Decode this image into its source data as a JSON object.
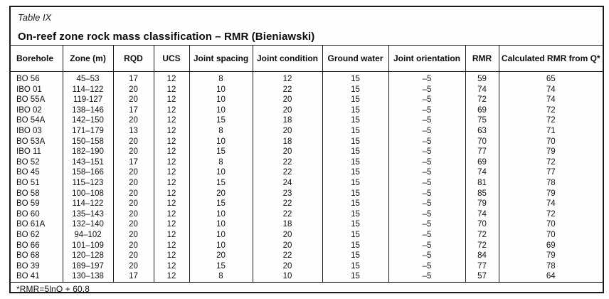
{
  "table": {
    "caption": "Table IX",
    "title": "On-reef zone rock mass classification – RMR (Bieniawski)",
    "columns": [
      "Borehole",
      "Zone (m)",
      "RQD",
      "UCS",
      "Joint spacing",
      "Joint condition",
      "Ground water",
      "Joint orientation",
      "RMR",
      "Calculated RMR from Q*"
    ],
    "rows": [
      [
        "BO 56",
        "45–53",
        "17",
        "12",
        "8",
        "12",
        "15",
        "–5",
        "59",
        "65"
      ],
      [
        "IBO 01",
        "114–122",
        "20",
        "12",
        "10",
        "22",
        "15",
        "–5",
        "74",
        "74"
      ],
      [
        "BO 55A",
        "119-127",
        "20",
        "12",
        "10",
        "20",
        "15",
        "–5",
        "72",
        "74"
      ],
      [
        "IBO 02",
        "138–146",
        "17",
        "12",
        "10",
        "20",
        "15",
        "–5",
        "69",
        "72"
      ],
      [
        "BO 54A",
        "142–150",
        "20",
        "12",
        "15",
        "18",
        "15",
        "–5",
        "75",
        "72"
      ],
      [
        "IBO 03",
        "171–179",
        "13",
        "12",
        "8",
        "20",
        "15",
        "–5",
        "63",
        "71"
      ],
      [
        "BO 53A",
        "150–158",
        "20",
        "12",
        "10",
        "18",
        "15",
        "–5",
        "70",
        "70"
      ],
      [
        "IBO 11",
        "182–190",
        "20",
        "12",
        "15",
        "20",
        "15",
        "–5",
        "77",
        "79"
      ],
      [
        "BO 52",
        "143–151",
        "17",
        "12",
        "8",
        "22",
        "15",
        "–5",
        "69",
        "72"
      ],
      [
        "BO 45",
        "158–166",
        "20",
        "12",
        "10",
        "22",
        "15",
        "–5",
        "74",
        "77"
      ],
      [
        "BO 51",
        "115–123",
        "20",
        "12",
        "15",
        "24",
        "15",
        "–5",
        "81",
        "78"
      ],
      [
        "BO 58",
        "100–108",
        "20",
        "12",
        "20",
        "23",
        "15",
        "–5",
        "85",
        "79"
      ],
      [
        "BO 59",
        "114–122",
        "20",
        "12",
        "15",
        "22",
        "15",
        "–5",
        "79",
        "74"
      ],
      [
        "BO 60",
        "135–143",
        "20",
        "12",
        "10",
        "22",
        "15",
        "–5",
        "74",
        "72"
      ],
      [
        "BO 61A",
        "132–140",
        "20",
        "12",
        "10",
        "18",
        "15",
        "–5",
        "70",
        "70"
      ],
      [
        "BO 62",
        "94–102",
        "20",
        "12",
        "10",
        "20",
        "15",
        "–5",
        "72",
        "70"
      ],
      [
        "BO 66",
        "101–109",
        "20",
        "12",
        "10",
        "20",
        "15",
        "–5",
        "72",
        "69"
      ],
      [
        "BO 68",
        "120–128",
        "20",
        "12",
        "20",
        "22",
        "15",
        "–5",
        "84",
        "79"
      ],
      [
        "BO 39",
        "189–197",
        "20",
        "12",
        "15",
        "20",
        "15",
        "–5",
        "77",
        "78"
      ],
      [
        "BO 41",
        "130–138",
        "17",
        "12",
        "8",
        "10",
        "15",
        "–5",
        "57",
        "64"
      ]
    ],
    "footnote": "*RMR=5lnQ + 60.8"
  }
}
